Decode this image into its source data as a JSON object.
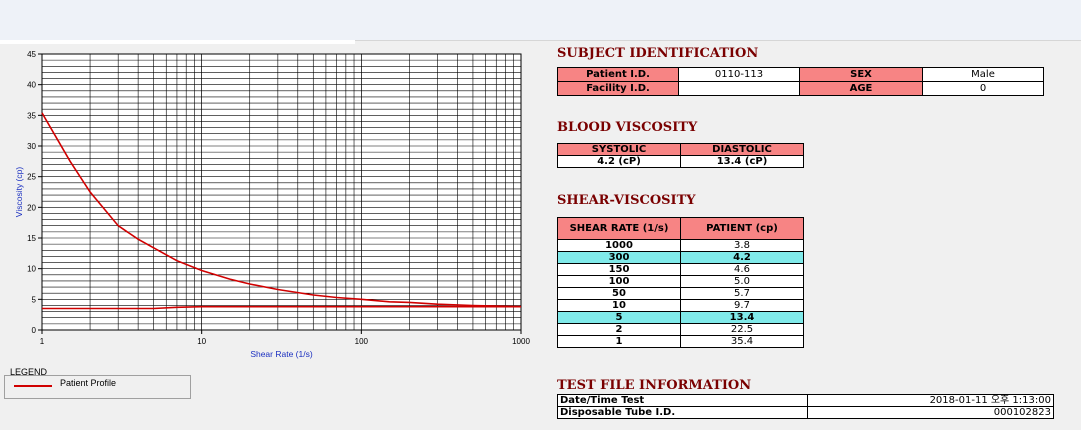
{
  "subject": {
    "heading": "SUBJECT IDENTIFICATION",
    "patient_id_label": "Patient I.D.",
    "patient_id": "0110-113",
    "sex_label": "SEX",
    "sex": "Male",
    "facility_label": "Facility I.D.",
    "facility_id": "",
    "age_label": "AGE",
    "age": "0"
  },
  "blood": {
    "heading": "BLOOD VISCOSITY",
    "systolic_label": "SYSTOLIC",
    "diastolic_label": "DIASTOLIC",
    "systolic": "4.2 (cP)",
    "diastolic": "13.4 (cP)"
  },
  "shear": {
    "heading": "SHEAR-VISCOSITY",
    "rate_label": "SHEAR RATE (1/s)",
    "patient_label": "PATIENT (cp)",
    "rows": [
      {
        "rate": "1000",
        "val": "3.8",
        "hl": false
      },
      {
        "rate": "300",
        "val": "4.2",
        "hl": true
      },
      {
        "rate": "150",
        "val": "4.6",
        "hl": false
      },
      {
        "rate": "100",
        "val": "5.0",
        "hl": false
      },
      {
        "rate": "50",
        "val": "5.7",
        "hl": false
      },
      {
        "rate": "10",
        "val": "9.7",
        "hl": false
      },
      {
        "rate": "5",
        "val": "13.4",
        "hl": true
      },
      {
        "rate": "2",
        "val": "22.5",
        "hl": false
      },
      {
        "rate": "1",
        "val": "35.4",
        "hl": false
      }
    ]
  },
  "testfile": {
    "heading": "TEST FILE INFORMATION",
    "datetime_label": "Date/Time Test",
    "datetime": "2018-01-11  오후 1:13:00",
    "tube_label": "Disposable Tube I.D.",
    "tube_id": "000102823"
  },
  "legend": {
    "title": "LEGEND",
    "item": "Patient Profile",
    "color": "#d00000"
  },
  "chart_data": {
    "type": "line",
    "xlabel": "Shear Rate (1/s)",
    "ylabel": "Viscosity (cp)",
    "xscale": "log",
    "xlim": [
      1,
      1000
    ],
    "ylim": [
      0,
      45
    ],
    "yticks": [
      "0",
      "5",
      "10",
      "15",
      "20",
      "25",
      "30",
      "35",
      "40",
      "45"
    ],
    "xticks": [
      "1",
      "10",
      "100",
      "1000"
    ],
    "grid": true,
    "series": [
      {
        "name": "Patient Profile",
        "color": "#d00000",
        "x": [
          1,
          1.5,
          2,
          3,
          4,
          5,
          7,
          10,
          15,
          20,
          30,
          50,
          70,
          100,
          150,
          200,
          300,
          500,
          700,
          1000
        ],
        "y": [
          35.4,
          27.5,
          22.5,
          17.0,
          14.8,
          13.4,
          11.3,
          9.7,
          8.3,
          7.5,
          6.6,
          5.7,
          5.3,
          5.0,
          4.6,
          4.5,
          4.2,
          4.0,
          3.9,
          3.8
        ]
      },
      {
        "name": "",
        "color": "#d00000",
        "x": [
          1,
          5,
          7,
          10,
          100,
          1000
        ],
        "y": [
          3.5,
          3.5,
          3.7,
          3.8,
          3.8,
          3.8
        ]
      }
    ]
  }
}
